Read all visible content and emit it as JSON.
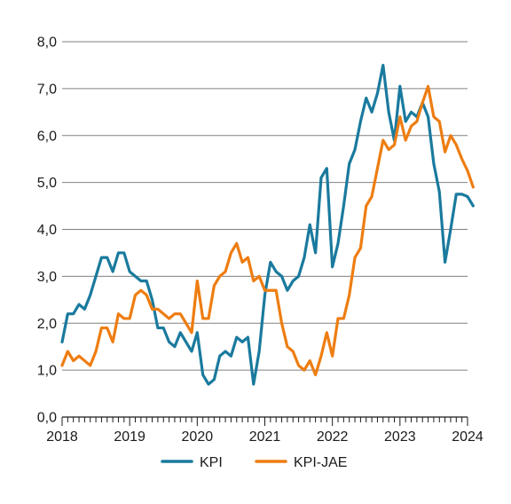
{
  "chart_data": {
    "type": "line",
    "title": "",
    "xlabel": "",
    "ylabel": "",
    "x_start": "2018-01",
    "x_step": "month",
    "x_ticks": [
      "2018",
      "2019",
      "2020",
      "2021",
      "2022",
      "2023",
      "2024"
    ],
    "y_ticks": [
      "0,0",
      "1,0",
      "2,0",
      "3,0",
      "4,0",
      "5,0",
      "6,0",
      "7,0",
      "8,0"
    ],
    "ylim": [
      0,
      8
    ],
    "grid": "horizontal",
    "legend_position": "bottom",
    "series": [
      {
        "name": "KPI",
        "color": "#1a7a9e",
        "values": [
          1.6,
          2.2,
          2.2,
          2.4,
          2.3,
          2.6,
          3.0,
          3.4,
          3.4,
          3.1,
          3.5,
          3.5,
          3.1,
          3.0,
          2.9,
          2.9,
          2.5,
          1.9,
          1.9,
          1.6,
          1.5,
          1.8,
          1.6,
          1.4,
          1.8,
          0.9,
          0.7,
          0.8,
          1.3,
          1.4,
          1.3,
          1.7,
          1.6,
          1.7,
          0.7,
          1.4,
          2.6,
          3.3,
          3.1,
          3.0,
          2.7,
          2.9,
          3.0,
          3.4,
          4.1,
          3.5,
          5.1,
          5.3,
          3.2,
          3.7,
          4.5,
          5.4,
          5.7,
          6.3,
          6.8,
          6.5,
          6.9,
          7.5,
          6.5,
          5.9,
          7.05,
          6.3,
          6.5,
          6.4,
          6.7,
          6.4,
          5.4,
          4.8,
          3.3,
          4.0,
          4.75,
          4.75,
          4.7,
          4.5
        ]
      },
      {
        "name": "KPI-JAE",
        "color": "#ee7d11",
        "values": [
          1.1,
          1.4,
          1.2,
          1.3,
          1.2,
          1.1,
          1.4,
          1.9,
          1.9,
          1.6,
          2.2,
          2.1,
          2.1,
          2.6,
          2.7,
          2.6,
          2.3,
          2.3,
          2.2,
          2.1,
          2.2,
          2.2,
          2.0,
          1.8,
          2.9,
          2.1,
          2.1,
          2.8,
          3.0,
          3.1,
          3.5,
          3.7,
          3.3,
          3.4,
          2.9,
          3.0,
          2.7,
          2.7,
          2.7,
          2.0,
          1.5,
          1.4,
          1.1,
          1.0,
          1.2,
          0.9,
          1.3,
          1.8,
          1.3,
          2.1,
          2.1,
          2.6,
          3.4,
          3.6,
          4.5,
          4.7,
          5.3,
          5.9,
          5.7,
          5.8,
          6.4,
          5.9,
          6.2,
          6.3,
          6.7,
          7.05,
          6.4,
          6.3,
          5.65,
          6.0,
          5.8,
          5.5,
          5.25,
          4.9
        ]
      }
    ]
  }
}
